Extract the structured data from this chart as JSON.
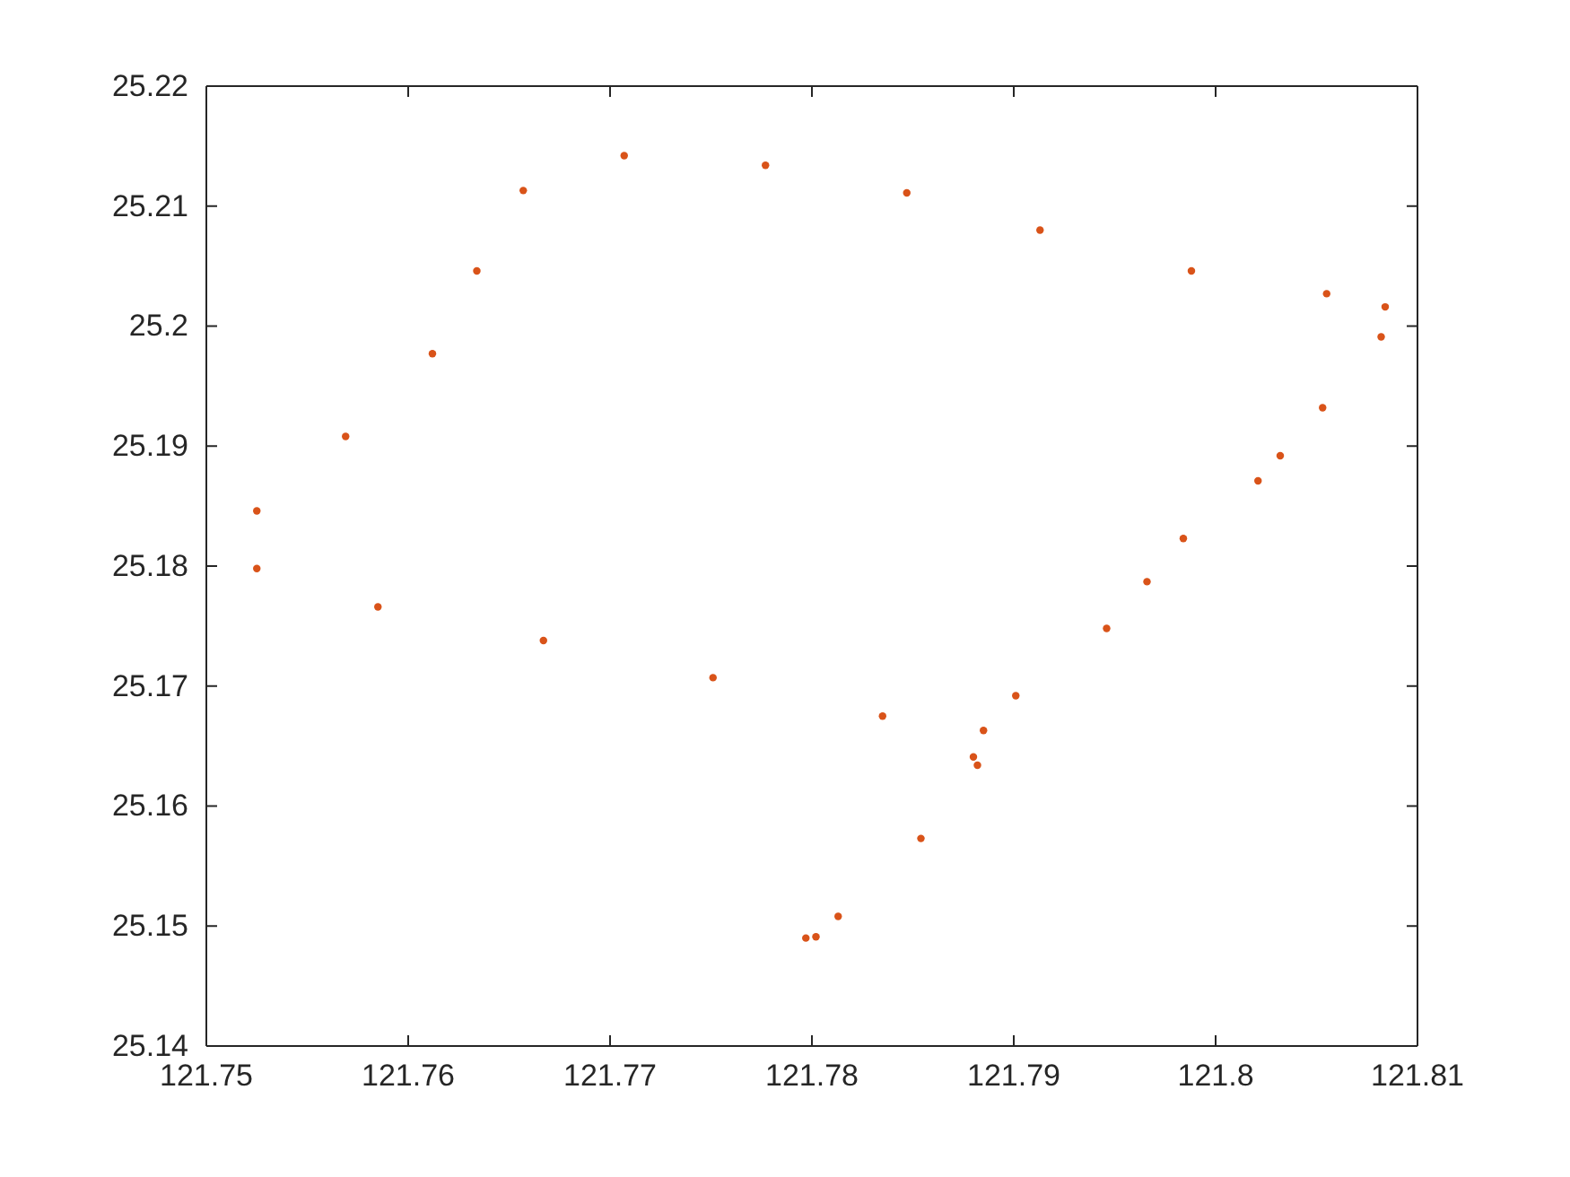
{
  "chart_data": {
    "type": "scatter",
    "marker": "circle",
    "xlim": [
      121.75,
      121.81
    ],
    "ylim": [
      25.14,
      25.22
    ],
    "xticks": [
      121.75,
      121.76,
      121.77,
      121.78,
      121.79,
      121.8,
      121.81
    ],
    "yticks": [
      25.14,
      25.15,
      25.16,
      25.17,
      25.18,
      25.19,
      25.2,
      25.21,
      25.22
    ],
    "series": [
      {
        "color": "#d95319",
        "x": [
          121.7525,
          121.7525,
          121.7569,
          121.7585,
          121.7612,
          121.7634,
          121.7657,
          121.7667,
          121.7707,
          121.7751,
          121.7777,
          121.7797,
          121.7802,
          121.7813,
          121.7835,
          121.7847,
          121.7854,
          121.788,
          121.7882,
          121.7885,
          121.7901,
          121.7913,
          121.7946,
          121.7966,
          121.7984,
          121.7988,
          121.8021,
          121.8032,
          121.8053,
          121.8055,
          121.8082,
          121.8084
        ],
        "values": [
          25.1846,
          25.1798,
          25.1908,
          25.1766,
          25.1977,
          25.2046,
          25.2113,
          25.1738,
          25.2142,
          25.1707,
          25.2134,
          25.149,
          25.1491,
          25.1508,
          25.1675,
          25.2111,
          25.1573,
          25.1641,
          25.1634,
          25.1663,
          25.1692,
          25.208,
          25.1748,
          25.1787,
          25.1823,
          25.2046,
          25.1871,
          25.1892,
          25.1932,
          25.2027,
          25.1991,
          25.2016
        ]
      }
    ]
  }
}
